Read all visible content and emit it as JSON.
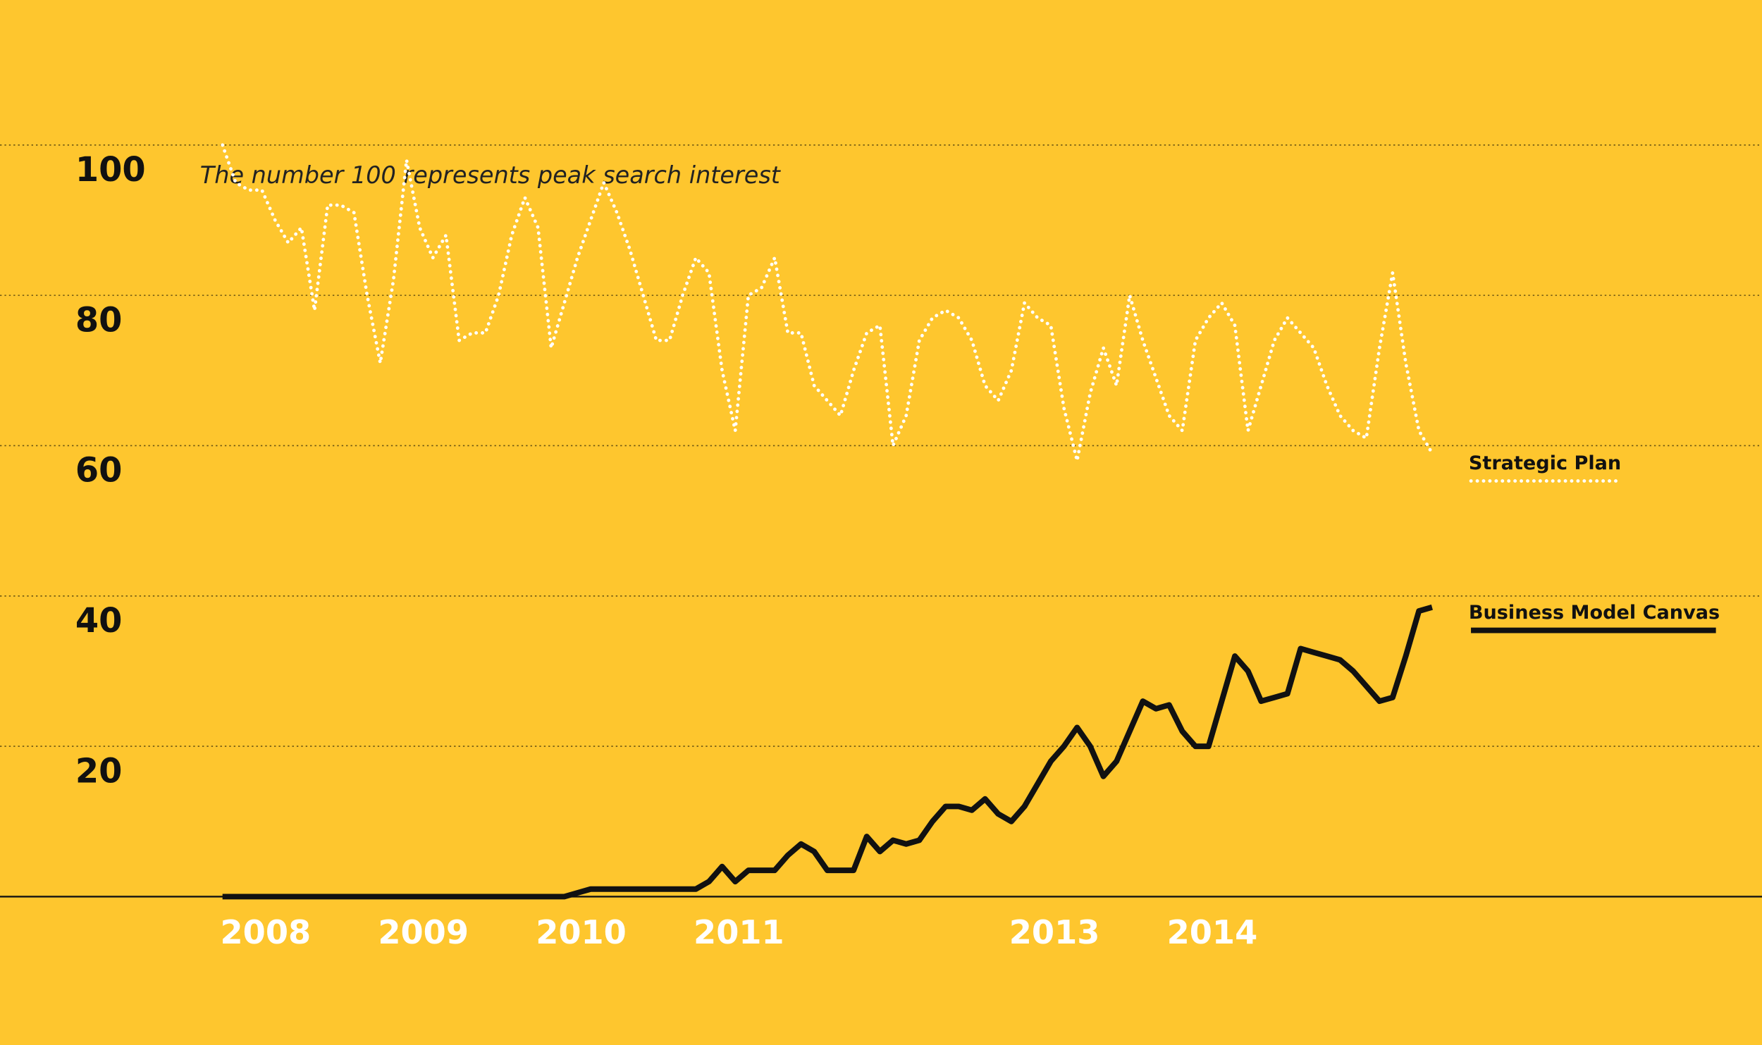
{
  "chart_data": {
    "type": "line",
    "annotation": "The number 100 represents peak search interest",
    "categories": [
      "2008",
      null,
      null,
      null,
      null,
      null,
      null,
      null,
      null,
      null,
      null,
      null,
      "2009",
      null,
      null,
      null,
      null,
      null,
      null,
      null,
      null,
      null,
      null,
      null,
      "2010",
      null,
      null,
      null,
      null,
      null,
      null,
      null,
      null,
      null,
      null,
      null,
      "2011",
      null,
      null,
      null,
      null,
      null,
      null,
      null,
      null,
      null,
      null,
      null,
      null,
      null,
      null,
      null,
      null,
      null,
      null,
      null,
      null,
      null,
      null,
      null,
      "2013",
      null,
      null,
      null,
      null,
      null,
      null,
      null,
      null,
      null,
      null,
      null,
      "2014",
      null,
      null,
      null,
      null,
      null,
      null,
      null,
      null,
      null,
      null,
      null,
      null,
      null,
      null,
      null,
      null,
      null,
      null,
      null,
      null
    ],
    "series": [
      {
        "name": "Strategic Plan",
        "color": "#ffffff",
        "style": "dotted",
        "values": [
          100,
          95,
          94,
          94,
          90,
          87,
          89,
          78,
          92,
          92,
          91,
          80,
          71,
          82,
          98,
          89,
          85,
          88,
          74,
          75,
          75,
          80,
          88,
          93,
          89,
          73,
          79,
          85,
          90,
          95,
          91,
          86,
          80,
          74,
          74,
          80,
          85,
          83,
          70,
          62,
          80,
          81,
          85,
          75,
          75,
          68,
          66,
          64,
          70,
          75,
          76,
          60,
          64,
          74,
          77,
          78,
          77,
          74,
          68,
          66,
          70,
          79,
          77,
          76,
          65,
          58,
          67,
          73,
          68,
          80,
          74,
          69,
          64,
          62,
          74,
          77,
          79,
          76,
          62,
          68,
          74,
          77,
          75,
          73,
          68,
          64,
          62,
          61,
          73,
          83,
          71,
          62,
          59
        ]
      },
      {
        "name": "Business Model Canvas",
        "color": "#111111",
        "style": "solid",
        "values": [
          0,
          0,
          0,
          0,
          0,
          0,
          0,
          0,
          0,
          0,
          0,
          0,
          0,
          0,
          0,
          0,
          0,
          0,
          0,
          0,
          0,
          0,
          0,
          0,
          0,
          0,
          0,
          0.5,
          1,
          1,
          1,
          1,
          1,
          1,
          1,
          1,
          1,
          2,
          4,
          2,
          3.5,
          3.5,
          3.5,
          5.5,
          7,
          6,
          3.5,
          3.5,
          3.5,
          8,
          6,
          7.5,
          7,
          7.5,
          10,
          12,
          12,
          11.5,
          13,
          11,
          10,
          12,
          15,
          18,
          20,
          22.5,
          20,
          16,
          18,
          22,
          26,
          25,
          25.5,
          22,
          20,
          20,
          26,
          32,
          30,
          26,
          26.5,
          27,
          33,
          32.5,
          32,
          31.5,
          30,
          28,
          26,
          26.5,
          32,
          38,
          38.5
        ]
      }
    ],
    "ylim": [
      0,
      100
    ],
    "yticks": [
      20,
      40,
      60,
      80,
      100
    ],
    "grid": true
  }
}
